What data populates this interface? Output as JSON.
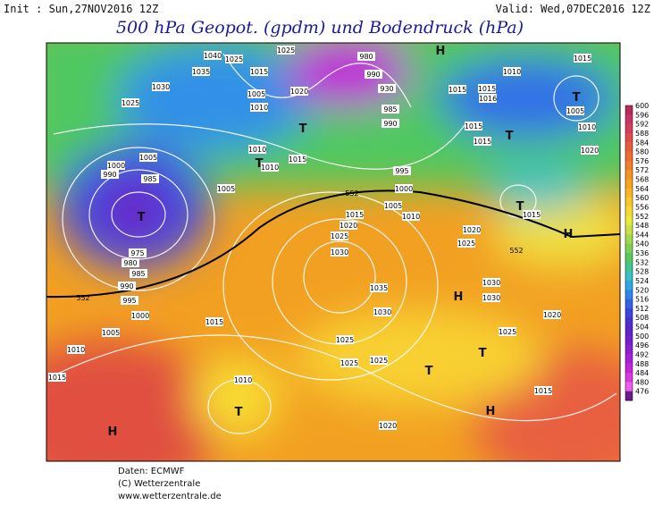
{
  "header": {
    "init": "Init : Sun,27NOV2016 12Z",
    "valid": "Valid: Wed,07DEC2016 12Z",
    "title": "500 hPa Geopot. (gpdm) und Bodendruck (hPa)"
  },
  "map": {
    "pressure_labels": [
      "1040",
      "1035",
      "1030",
      "1025",
      "1025",
      "1015",
      "1025",
      "1005",
      "1010",
      "1020",
      "1010",
      "1010",
      "1015",
      "980",
      "990",
      "930",
      "985",
      "990",
      "1015",
      "1015",
      "1016",
      "1010",
      "1015",
      "1005",
      "1010",
      "1015",
      "1015",
      "1020",
      "1000",
      "990",
      "1005",
      "1005",
      "985",
      "1000",
      "995",
      "1005",
      "1010",
      "1015",
      "1020",
      "1025",
      "1030",
      "1025",
      "1020",
      "1015",
      "975",
      "980",
      "985",
      "990",
      "995",
      "1000",
      "1005",
      "1010",
      "1015",
      "1015",
      "1010",
      "1025",
      "1025",
      "1025",
      "1030",
      "1035",
      "1030",
      "1030",
      "1025",
      "1020",
      "1015",
      "1020"
    ],
    "height_labels": [
      "552",
      "552",
      "552"
    ],
    "centers": [
      "H",
      "T",
      "T",
      "T",
      "T",
      "T",
      "T",
      "H",
      "H",
      "T",
      "T",
      "H",
      "T",
      "H"
    ]
  },
  "legend": {
    "labels": [
      "600",
      "596",
      "592",
      "588",
      "584",
      "580",
      "576",
      "572",
      "568",
      "564",
      "560",
      "556",
      "552",
      "548",
      "544",
      "540",
      "536",
      "532",
      "528",
      "524",
      "520",
      "516",
      "512",
      "508",
      "504",
      "500",
      "496",
      "492",
      "488",
      "484",
      "480",
      "476"
    ],
    "colors": [
      "#b82a5e",
      "#c8346a",
      "#d63e5e",
      "#e04c4c",
      "#e85c3c",
      "#ee6c30",
      "#f27e28",
      "#f49224",
      "#f6a420",
      "#f8b624",
      "#f8c82c",
      "#f6da34",
      "#eaea3c",
      "#c8e044",
      "#a2d84c",
      "#7cd054",
      "#58c85c",
      "#44c490",
      "#38c0c4",
      "#30a8e4",
      "#3084ec",
      "#3462e4",
      "#3c44dc",
      "#4c30d0",
      "#6024c8",
      "#7420cc",
      "#8c20d4",
      "#a820dc",
      "#c424dc",
      "#dc38e0",
      "#ee5cee",
      "#6a1a8a"
    ]
  },
  "footer": {
    "data": "Daten: ECMWF",
    "copyright": "(C) Wetterzentrale",
    "url": "www.wetterzentrale.de"
  }
}
